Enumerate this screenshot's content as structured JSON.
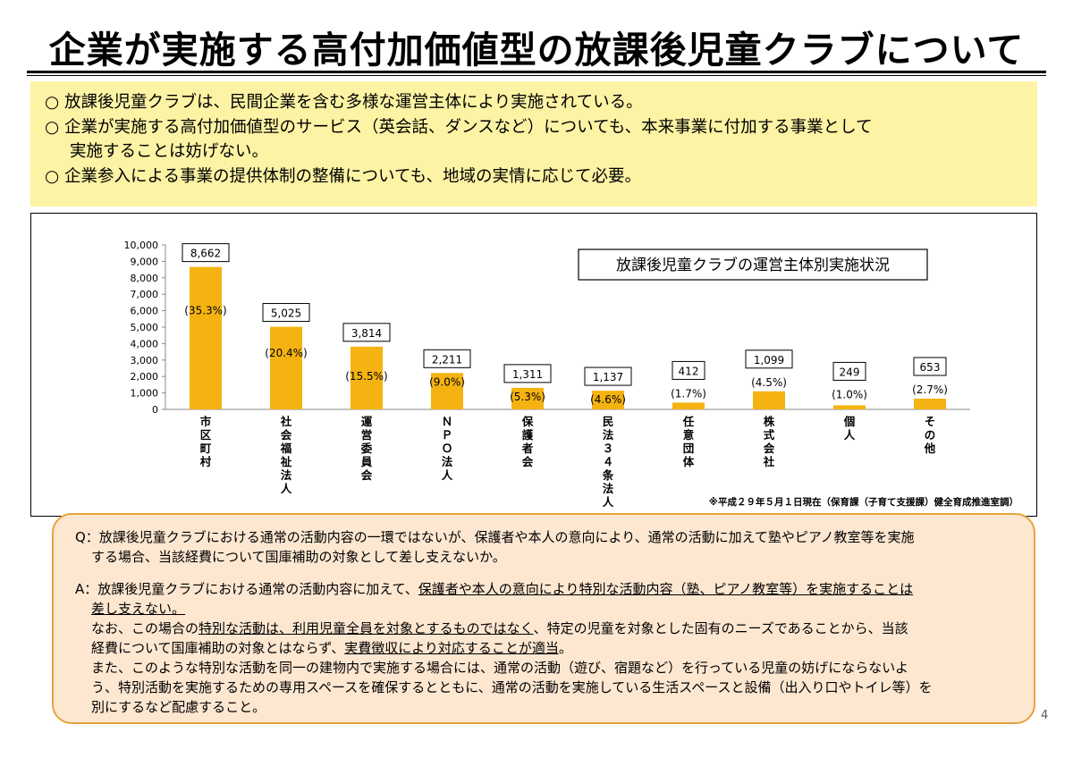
{
  "title": "企業が実施する高付加価値型の放課後児童クラブについて",
  "summary": {
    "bullet": "○",
    "items": [
      "放課後児童クラブは、民間企業を含む多様な運営主体により実施されている。",
      "企業が実施する高付加価値型のサービス（英会話、ダンスなど）についても、本来事業に付加する事業として",
      "企業参入による事業の提供体制の整備についても、地域の実情に応じて必要。"
    ],
    "item2_cont": "実施することは妨げない。"
  },
  "chart_data": {
    "type": "bar",
    "title": "放課後児童クラブの運営主体別実施状況",
    "categories": [
      "市区町村",
      "社会福祉法人",
      "運営委員会",
      "ＮＰＯ法人",
      "保護者会",
      "民法３４条法人",
      "任意団体",
      "株式会社",
      "個人",
      "その他"
    ],
    "values": [
      8662,
      5025,
      3814,
      2211,
      1311,
      1137,
      412,
      1099,
      249,
      653
    ],
    "value_labels": [
      "8,662",
      "5,025",
      "3,814",
      "2,211",
      "1,311",
      "1,137",
      "412",
      "1,099",
      "249",
      "653"
    ],
    "percent_labels": [
      "(35.3%)",
      "(20.4%)",
      "(15.5%)",
      "(9.0%)",
      "(5.3%)",
      "(4.6%)",
      "(1.7%)",
      "(4.5%)",
      "(1.0%)",
      "(2.7%)"
    ],
    "yticks": [
      "0",
      "1,000",
      "2,000",
      "3,000",
      "4,000",
      "5,000",
      "6,000",
      "7,000",
      "8,000",
      "9,000",
      "10,000"
    ],
    "ylim": [
      0,
      10000
    ],
    "grid": false,
    "bar_color": "#f5b311",
    "note": "※平成２９年５月１日現在（保育課（子育て支援課）健全育成推進室調）"
  },
  "qa": {
    "q": "Q：放課後児童クラブにおける通常の活動内容の一環ではないが、保護者や本人の意向により、通常の活動に加えて塾やピアノ教室等を実施",
    "q_cont": "する場合、当該経費について国庫補助の対象として差し支えないか。",
    "a_pre": "A：放課後児童クラブにおける通常の活動内容に加えて、",
    "a_ul": "保護者や本人の意向により特別な活動内容（塾、ピアノ教室等）を実施することは",
    "a_ul2": "差し支えない。",
    "p2_pre": "なお、この場合の",
    "p2_ul": "特別な活動は、利用児童全員を対象とするものではなく",
    "p2_post": "、特定の児童を対象とした固有のニーズであることから、当該",
    "p2_cont_pre": "経費について国庫補助の対象とはならず、",
    "p2_cont_ul": "実費徴収により対応することが適当",
    "p2_cont_post": "。",
    "p3": "また、このような特別な活動を同一の建物内で実施する場合には、通常の活動（遊び、宿題など）を行っている児童の妨げにならないよ",
    "p3_cont1": "う、特別活動を実施するための専用スペースを確保するとともに、通常の活動を実施している生活スペースと設備（出入り口やトイレ等）を",
    "p3_cont2": "別にするなど配慮すること。"
  },
  "page_number": "4"
}
